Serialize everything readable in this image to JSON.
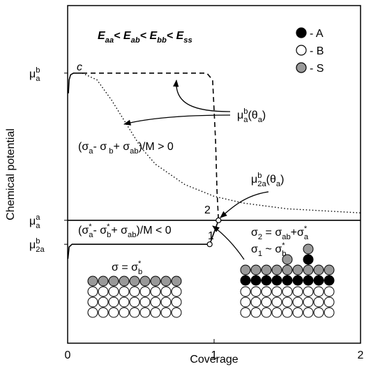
{
  "chart_data": {
    "type": "line",
    "title": [
      {
        "text": "E",
        "sub": "aa"
      },
      {
        "text": "< E",
        "sub": "ab"
      },
      {
        "text": "< E",
        "sub": "bb"
      },
      {
        "text": "< E",
        "sub": "ss"
      }
    ],
    "xlabel": "Coverage",
    "ylabel": "Chemical potential",
    "xlim": [
      0,
      2
    ],
    "ylim": [
      0,
      10
    ],
    "xticks": [
      0,
      1,
      2
    ],
    "yticks": [
      {
        "value": 8.0,
        "label": [
          {
            "text": "μ",
            "sup": "b",
            "sub": "a"
          }
        ]
      },
      {
        "value": 3.64,
        "label": [
          {
            "text": "μ",
            "sup": "a",
            "sub": "a"
          }
        ]
      },
      {
        "value": 2.93,
        "label": [
          {
            "text": "μ",
            "sup": "b",
            "sub": "2a"
          }
        ]
      }
    ],
    "series": [
      {
        "color": "#000",
        "style": "solid",
        "x": [
          0.005,
          0.01,
          0.02,
          0.04,
          0.1
        ],
        "values": [
          7.4,
          7.8,
          7.95,
          8.0,
          8.0
        ]
      },
      {
        "color": "#000",
        "style": "dashed",
        "x": [
          0.1,
          0.5,
          0.95,
          0.99,
          1.01,
          1.02,
          1.03
        ],
        "values": [
          8.0,
          8.0,
          8.0,
          7.8,
          6.0,
          4.5,
          3.64
        ]
      },
      {
        "color": "#000",
        "style": "dotted",
        "x": [
          0.1,
          0.2,
          0.3,
          0.4,
          0.5,
          0.6,
          0.8,
          1.0,
          1.2,
          1.5,
          2.0
        ],
        "values": [
          8.0,
          7.8,
          7.2,
          6.5,
          5.8,
          5.3,
          4.7,
          4.35,
          4.15,
          3.98,
          3.86
        ]
      },
      {
        "color": "#000",
        "style": "solid",
        "x": [
          0,
          2
        ],
        "values": [
          3.64,
          3.64
        ]
      },
      {
        "color": "#000",
        "style": "solid",
        "x": [
          0.002,
          0.01,
          0.03,
          0.97
        ],
        "values": [
          2.5,
          2.85,
          2.93,
          2.93
        ]
      },
      {
        "color": "#000",
        "style": "solid",
        "markers": true,
        "x": [
          0.97,
          1.03
        ],
        "values": [
          2.93,
          3.64
        ]
      }
    ],
    "annotations": {
      "c": [
        {
          "text": "c"
        }
      ],
      "p1": [
        {
          "text": "1"
        }
      ],
      "p2": [
        {
          "text": "2"
        }
      ],
      "mu_a": [
        {
          "text": "μ",
          "sup": "b",
          "sub": "a"
        },
        {
          "text": "(θ",
          "sub": "a"
        },
        {
          "text": ")"
        }
      ],
      "mu_2a": [
        {
          "text": "μ",
          "sup": "b",
          "sub": "2a"
        },
        {
          "text": "(θ",
          "sub": "a"
        },
        {
          "text": ")"
        }
      ],
      "ineq_pos": [
        {
          "text": "(σ",
          "sub": "a"
        },
        {
          "text": "- σ",
          "sub": " b"
        },
        {
          "text": "+ σ",
          "sub": "ab"
        },
        {
          "text": ")/M > 0"
        }
      ],
      "ineq_neg": [
        {
          "text": "(σ",
          "sup": "*",
          "sub": "a"
        },
        {
          "text": "- σ",
          "sup": "*",
          "sub": "b"
        },
        {
          "text": "+ σ",
          "sub": "ab"
        },
        {
          "text": ")/M < 0"
        }
      ],
      "sigma2": [
        {
          "text": "σ",
          "sub": "2"
        },
        {
          "text": " = σ",
          "sub": "ab"
        },
        {
          "text": "+σ",
          "sup": "*",
          "sub": "a"
        }
      ],
      "sigma1": [
        {
          "text": "σ",
          "sub": "1"
        },
        {
          "text": " ~ σ",
          "sup": "*",
          "sub": "b"
        }
      ],
      "sigma": [
        {
          "text": "σ = σ",
          "sup": "*",
          "sub": "b"
        }
      ]
    },
    "legend": [
      {
        "label": "- A",
        "color": "#000000"
      },
      {
        "label": "- B",
        "color": "#ffffff"
      },
      {
        "label": "- S",
        "color": "#999999"
      }
    ]
  }
}
